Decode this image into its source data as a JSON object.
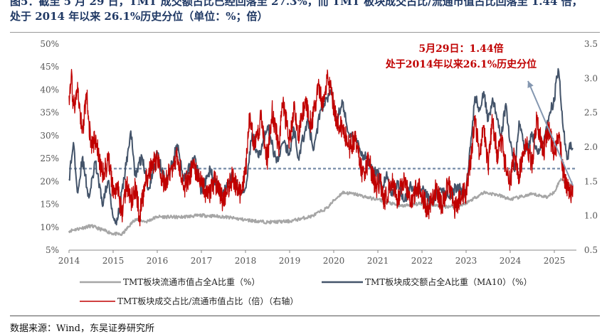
{
  "header": {
    "caption": "图5：截至 5 月 29 日，TMT 成交额占比已经回落至 27.3%，而 TMT 板块成交占比/流通市值占比回落至 1.44 倍，",
    "subtitle": "处于 2014 年以来 26.1%历史分位（单位：%；倍）"
  },
  "footer": {
    "source": "数据来源：Wind，东吴证券研究所"
  },
  "chart_data": {
    "type": "line",
    "x_ticks": [
      "2014",
      "2015",
      "2016",
      "2017",
      "2018",
      "2019",
      "2020",
      "2021",
      "2022",
      "2023",
      "2024",
      "2025"
    ],
    "x_range": [
      "2014-01",
      "2025-06"
    ],
    "y_left": {
      "ticks": [
        "5%",
        "10%",
        "15%",
        "20%",
        "25%",
        "30%",
        "35%",
        "40%",
        "45%",
        "50%"
      ],
      "range": [
        5,
        50
      ],
      "unit": "%"
    },
    "y_right": {
      "ticks": [
        "0.5",
        "1.0",
        "1.5",
        "2.0",
        "2.5",
        "3.0",
        "3.5"
      ],
      "range": [
        0.5,
        3.5
      ],
      "unit": "倍"
    },
    "reference_line": {
      "axis": "left",
      "value": 22.8
    },
    "annotation": {
      "line1": "5月29日：1.44倍",
      "line2": "处于2014年以来26.1%历史分位"
    },
    "series": [
      {
        "name": "TMT板块流通市值占全A比重（%）",
        "axis": "left",
        "color": "#a6a6a6",
        "points": [
          [
            2014.0,
            9.2
          ],
          [
            2014.5,
            10.3
          ],
          [
            2015.0,
            8.6
          ],
          [
            2015.2,
            8.4
          ],
          [
            2015.5,
            11.8
          ],
          [
            2015.75,
            11.2
          ],
          [
            2016.0,
            12.3
          ],
          [
            2016.5,
            12.2
          ],
          [
            2017.0,
            12.6
          ],
          [
            2017.5,
            12.3
          ],
          [
            2018.0,
            11.6
          ],
          [
            2018.5,
            11.1
          ],
          [
            2019.0,
            11.3
          ],
          [
            2019.5,
            12.4
          ],
          [
            2019.85,
            14.2
          ],
          [
            2020.0,
            15.8
          ],
          [
            2020.2,
            17.6
          ],
          [
            2020.5,
            17.2
          ],
          [
            2020.85,
            16.3
          ],
          [
            2021.0,
            16.1
          ],
          [
            2021.5,
            14.6
          ],
          [
            2022.0,
            15.2
          ],
          [
            2022.5,
            14.5
          ],
          [
            2022.85,
            14.7
          ],
          [
            2023.0,
            15.3
          ],
          [
            2023.4,
            17.6
          ],
          [
            2023.7,
            17.1
          ],
          [
            2024.0,
            16.1
          ],
          [
            2024.5,
            17.2
          ],
          [
            2024.85,
            16.6
          ],
          [
            2025.0,
            17.8
          ],
          [
            2025.15,
            20.6
          ],
          [
            2025.3,
            19.4
          ],
          [
            2025.42,
            18.9
          ]
        ]
      },
      {
        "name": "TMT板块成交额占全A比重（MA10）（%）",
        "axis": "left",
        "color": "#44546a",
        "points": [
          [
            2014.0,
            20.5
          ],
          [
            2014.1,
            28.5
          ],
          [
            2014.2,
            17.5
          ],
          [
            2014.3,
            25.1
          ],
          [
            2014.45,
            16.4
          ],
          [
            2014.6,
            24.2
          ],
          [
            2014.75,
            15.1
          ],
          [
            2014.9,
            20.2
          ],
          [
            2015.0,
            12.1
          ],
          [
            2015.1,
            11.6
          ],
          [
            2015.25,
            20.6
          ],
          [
            2015.4,
            31.0
          ],
          [
            2015.5,
            21.2
          ],
          [
            2015.65,
            25.5
          ],
          [
            2015.8,
            18.2
          ],
          [
            2016.0,
            26.3
          ],
          [
            2016.2,
            19.3
          ],
          [
            2016.45,
            28.1
          ],
          [
            2016.6,
            20.1
          ],
          [
            2016.85,
            25.6
          ],
          [
            2017.0,
            17.6
          ],
          [
            2017.2,
            22.5
          ],
          [
            2017.45,
            17.1
          ],
          [
            2017.7,
            21.1
          ],
          [
            2017.9,
            17.5
          ],
          [
            2018.0,
            18.6
          ],
          [
            2018.15,
            30.6
          ],
          [
            2018.3,
            25.2
          ],
          [
            2018.5,
            32.1
          ],
          [
            2018.7,
            24.1
          ],
          [
            2018.85,
            28.6
          ],
          [
            2019.0,
            26.0
          ],
          [
            2019.1,
            31.5
          ],
          [
            2019.2,
            25.1
          ],
          [
            2019.4,
            33.2
          ],
          [
            2019.55,
            27.0
          ],
          [
            2019.7,
            35.6
          ],
          [
            2019.85,
            38.2
          ],
          [
            2019.95,
            40.5
          ],
          [
            2020.05,
            33.6
          ],
          [
            2020.2,
            37.0
          ],
          [
            2020.35,
            30.2
          ],
          [
            2020.5,
            29.1
          ],
          [
            2020.6,
            26.6
          ],
          [
            2020.75,
            25.0
          ],
          [
            2020.9,
            21.6
          ],
          [
            2021.0,
            22.6
          ],
          [
            2021.1,
            17.5
          ],
          [
            2021.2,
            22.1
          ],
          [
            2021.3,
            17.0
          ],
          [
            2021.45,
            20.1
          ],
          [
            2021.6,
            15.6
          ],
          [
            2021.75,
            19.1
          ],
          [
            2021.9,
            17.6
          ],
          [
            2022.0,
            18.2
          ],
          [
            2022.2,
            15.5
          ],
          [
            2022.4,
            18.2
          ],
          [
            2022.6,
            16.6
          ],
          [
            2022.8,
            19.0
          ],
          [
            2022.95,
            17.5
          ],
          [
            2023.0,
            18.1
          ],
          [
            2023.1,
            27.6
          ],
          [
            2023.2,
            38.5
          ],
          [
            2023.3,
            36.1
          ],
          [
            2023.4,
            39.6
          ],
          [
            2023.5,
            33.2
          ],
          [
            2023.6,
            38.2
          ],
          [
            2023.7,
            33.5
          ],
          [
            2023.8,
            30.1
          ],
          [
            2023.9,
            37.0
          ],
          [
            2024.0,
            28.5
          ],
          [
            2024.1,
            22.2
          ],
          [
            2024.2,
            33.2
          ],
          [
            2024.35,
            26.5
          ],
          [
            2024.5,
            30.1
          ],
          [
            2024.65,
            26.1
          ],
          [
            2024.75,
            28.6
          ],
          [
            2024.9,
            35.1
          ],
          [
            2025.0,
            37.5
          ],
          [
            2025.05,
            43.0
          ],
          [
            2025.1,
            44.0
          ],
          [
            2025.2,
            31.6
          ],
          [
            2025.3,
            25.1
          ],
          [
            2025.35,
            28.4
          ],
          [
            2025.42,
            27.3
          ]
        ]
      },
      {
        "name": "TMT板块成交占比/流通市值占比（倍）（右轴）",
        "axis": "right",
        "color": "#c00000",
        "points": [
          [
            2014.0,
            2.75
          ],
          [
            2014.05,
            3.05
          ],
          [
            2014.1,
            2.6
          ],
          [
            2014.2,
            2.8
          ],
          [
            2014.3,
            2.2
          ],
          [
            2014.4,
            2.75
          ],
          [
            2014.5,
            2.0
          ],
          [
            2014.6,
            2.1
          ],
          [
            2014.75,
            1.6
          ],
          [
            2014.9,
            1.8
          ],
          [
            2015.0,
            1.35
          ],
          [
            2015.1,
            1.45
          ],
          [
            2015.2,
            1.0
          ],
          [
            2015.3,
            1.5
          ],
          [
            2015.4,
            1.2
          ],
          [
            2015.5,
            1.4
          ],
          [
            2015.6,
            1.0
          ],
          [
            2015.75,
            1.55
          ],
          [
            2016.0,
            1.85
          ],
          [
            2016.15,
            1.45
          ],
          [
            2016.3,
            1.65
          ],
          [
            2016.45,
            1.9
          ],
          [
            2016.6,
            1.4
          ],
          [
            2016.8,
            1.7
          ],
          [
            2017.0,
            1.5
          ],
          [
            2017.15,
            1.25
          ],
          [
            2017.3,
            1.5
          ],
          [
            2017.5,
            1.2
          ],
          [
            2017.7,
            1.55
          ],
          [
            2017.9,
            1.3
          ],
          [
            2018.0,
            1.6
          ],
          [
            2018.1,
            2.5
          ],
          [
            2018.2,
            2.0
          ],
          [
            2018.35,
            2.4
          ],
          [
            2018.5,
            1.8
          ],
          [
            2018.6,
            2.55
          ],
          [
            2018.75,
            2.0
          ],
          [
            2018.85,
            2.65
          ],
          [
            2019.0,
            2.1
          ],
          [
            2019.1,
            2.55
          ],
          [
            2019.2,
            2.15
          ],
          [
            2019.35,
            2.7
          ],
          [
            2019.5,
            2.3
          ],
          [
            2019.65,
            2.9
          ],
          [
            2019.75,
            2.6
          ],
          [
            2019.85,
            3.0
          ],
          [
            2019.95,
            2.8
          ],
          [
            2020.05,
            2.4
          ],
          [
            2020.2,
            2.3
          ],
          [
            2020.35,
            2.0
          ],
          [
            2020.5,
            2.1
          ],
          [
            2020.65,
            1.6
          ],
          [
            2020.8,
            1.8
          ],
          [
            2020.95,
            1.4
          ],
          [
            2021.05,
            1.5
          ],
          [
            2021.15,
            1.2
          ],
          [
            2021.3,
            1.5
          ],
          [
            2021.45,
            1.25
          ],
          [
            2021.6,
            1.55
          ],
          [
            2021.75,
            1.2
          ],
          [
            2021.9,
            1.45
          ],
          [
            2022.0,
            1.3
          ],
          [
            2022.15,
            1.05
          ],
          [
            2022.3,
            1.4
          ],
          [
            2022.45,
            1.15
          ],
          [
            2022.6,
            1.45
          ],
          [
            2022.75,
            1.1
          ],
          [
            2022.9,
            1.3
          ],
          [
            2023.0,
            1.35
          ],
          [
            2023.1,
            1.8
          ],
          [
            2023.2,
            2.4
          ],
          [
            2023.3,
            1.9
          ],
          [
            2023.4,
            2.3
          ],
          [
            2023.5,
            1.7
          ],
          [
            2023.6,
            2.4
          ],
          [
            2023.7,
            1.9
          ],
          [
            2023.8,
            2.1
          ],
          [
            2023.9,
            1.7
          ],
          [
            2024.0,
            1.5
          ],
          [
            2024.1,
            1.9
          ],
          [
            2024.2,
            1.6
          ],
          [
            2024.35,
            2.1
          ],
          [
            2024.5,
            1.75
          ],
          [
            2024.6,
            2.4
          ],
          [
            2024.75,
            1.9
          ],
          [
            2024.85,
            2.3
          ],
          [
            2025.0,
            1.9
          ],
          [
            2025.1,
            2.2
          ],
          [
            2025.2,
            1.65
          ],
          [
            2025.3,
            1.4
          ],
          [
            2025.35,
            1.3
          ],
          [
            2025.42,
            1.44
          ]
        ]
      }
    ]
  }
}
